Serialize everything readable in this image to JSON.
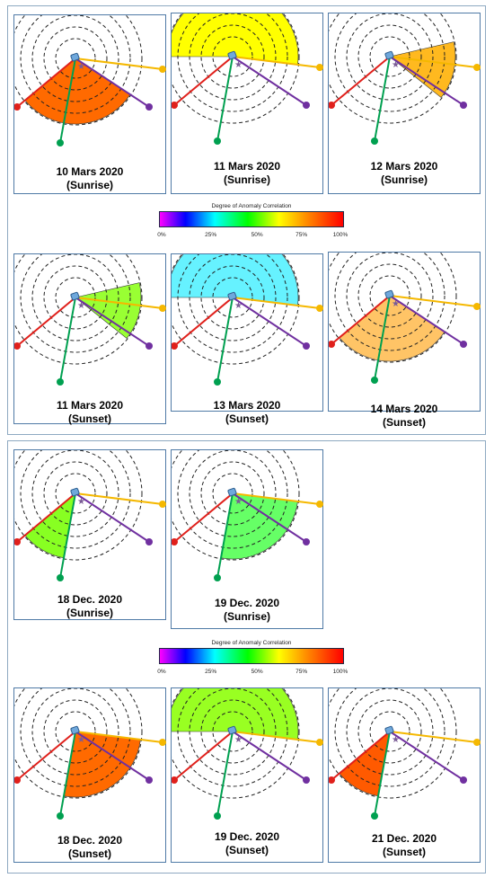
{
  "colorbar": {
    "title": "Degree of Anomaly Correlation",
    "ticks": [
      "0%",
      "25%",
      "50%",
      "75%",
      "100%"
    ]
  },
  "panels": [
    {
      "line1": "10 Mars 2020",
      "line2": "(Sunrise)",
      "fill": "#ff6a00",
      "sector": "lower-left"
    },
    {
      "line1": "11 Mars 2020",
      "line2": "(Sunrise)",
      "fill": "#ffff00",
      "sector": "upper-half"
    },
    {
      "line1": "12 Mars 2020",
      "line2": "(Sunrise)",
      "fill": "#ffb91f",
      "sector": "right-wedge"
    },
    {
      "line1": "11 Mars 2020",
      "line2": "(Sunset)",
      "fill": "#99ff33",
      "sector": "right-wedge"
    },
    {
      "line1": "13 Mars 2020",
      "line2": "(Sunset)",
      "fill": "#66f2ff",
      "sector": "upper-half"
    },
    {
      "line1": "14 Mars 2020",
      "line2": "(Sunset)",
      "fill": "#ffc466",
      "sector": "lower-left"
    },
    {
      "line1": "18 Dec. 2020",
      "line2": "(Sunrise)",
      "fill": "#88ff22",
      "sector": "red-green"
    },
    {
      "line1": "19 Dec. 2020",
      "line2": "(Sunrise)",
      "fill": "#66ff66",
      "sector": "green-yellow"
    },
    {
      "line1": "18 Dec. 2020",
      "line2": "(Sunset)",
      "fill": "#ff6a00",
      "sector": "green-yellow"
    },
    {
      "line1": "19 Dec. 2020",
      "line2": "(Sunset)",
      "fill": "#99ff22",
      "sector": "upper-half"
    },
    {
      "line1": "21 Dec. 2020",
      "line2": "(Sunset)",
      "fill": "#ff5a00",
      "sector": "red-green"
    }
  ]
}
